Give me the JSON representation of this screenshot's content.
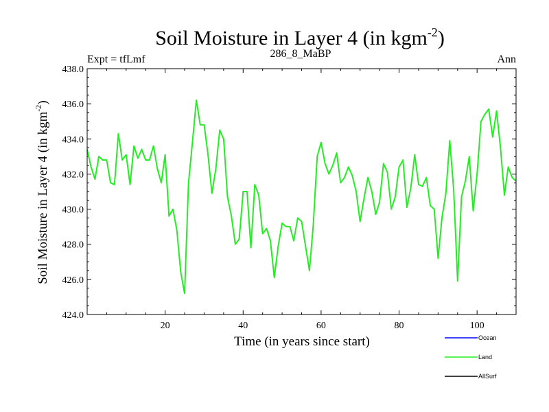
{
  "chart_data": {
    "type": "line",
    "title": "Soil Moisture in Layer 4 (in kgm",
    "title_sup": "-2",
    "title_close": ")",
    "subtitle_left": "Expt = tfLmf",
    "subtitle_center": "286_8_MaBP",
    "subtitle_right": "Ann",
    "xlabel": "Time (in years since start)",
    "ylabel": "Soil Moisture in Layer 4 (in kgm",
    "ylabel_sup": "-2",
    "ylabel_close": ")",
    "xlim": [
      0,
      110
    ],
    "ylim": [
      424,
      438
    ],
    "xticks": [
      20,
      40,
      60,
      80,
      100
    ],
    "xtick_labels": [
      "20",
      "40",
      "60",
      "80",
      "100"
    ],
    "yticks": [
      424,
      426,
      428,
      430,
      432,
      434,
      436,
      438
    ],
    "ytick_labels": [
      "424.0",
      "426.0",
      "428.0",
      "430.0",
      "432.0",
      "434.0",
      "436.0",
      "438.0"
    ],
    "legend": [
      {
        "name": "Ocean",
        "color": "#0000ff"
      },
      {
        "name": "Land",
        "color": "#22ee22"
      },
      {
        "name": "AllSurf",
        "color": "#000000"
      }
    ],
    "series": [
      {
        "name": "Land",
        "color": "#22ee22",
        "x": [
          0,
          1,
          2,
          3,
          4,
          5,
          6,
          7,
          8,
          9,
          10,
          11,
          12,
          13,
          14,
          15,
          16,
          17,
          18,
          19,
          20,
          21,
          22,
          23,
          24,
          25,
          26,
          27,
          28,
          29,
          30,
          31,
          32,
          33,
          34,
          35,
          36,
          37,
          38,
          39,
          40,
          41,
          42,
          43,
          44,
          45,
          46,
          47,
          48,
          49,
          50,
          51,
          52,
          53,
          54,
          55,
          56,
          57,
          58,
          59,
          60,
          61,
          62,
          63,
          64,
          65,
          66,
          67,
          68,
          69,
          70,
          71,
          72,
          73,
          74,
          75,
          76,
          77,
          78,
          79,
          80,
          81,
          82,
          83,
          84,
          85,
          86,
          87,
          88,
          89,
          90,
          91,
          92,
          93,
          94,
          95,
          96,
          97,
          98,
          99,
          100,
          101,
          102,
          103,
          104,
          105,
          106,
          107,
          108,
          109,
          110
        ],
        "values": [
          433.4,
          432.4,
          431.7,
          433.0,
          432.8,
          432.8,
          431.5,
          431.4,
          434.3,
          432.8,
          433.1,
          431.4,
          433.6,
          432.9,
          433.4,
          432.8,
          432.8,
          433.6,
          432.3,
          431.5,
          433.1,
          429.6,
          430.0,
          428.8,
          426.4,
          425.2,
          431.5,
          433.8,
          436.2,
          434.8,
          434.8,
          433.1,
          430.9,
          432.3,
          434.5,
          434.0,
          430.7,
          429.6,
          428.0,
          428.3,
          431.0,
          431.0,
          427.8,
          431.4,
          430.8,
          428.6,
          428.9,
          428.2,
          426.1,
          427.9,
          429.2,
          429.0,
          429.0,
          428.2,
          429.5,
          429.3,
          427.9,
          426.5,
          429.1,
          433.0,
          433.8,
          432.6,
          432.0,
          432.5,
          433.2,
          431.5,
          431.8,
          432.4,
          431.9,
          431.0,
          429.3,
          430.6,
          431.8,
          431.0,
          429.7,
          430.4,
          432.6,
          432.1,
          430.0,
          430.7,
          432.4,
          432.8,
          430.1,
          431.2,
          433.1,
          431.4,
          431.3,
          431.8,
          430.2,
          430.0,
          427.2,
          429.5,
          430.9,
          433.9,
          431.1,
          425.9,
          430.7,
          431.6,
          433.0,
          429.9,
          432.0,
          435.0,
          435.4,
          435.7,
          434.1,
          435.6,
          433.5,
          430.8,
          432.4,
          431.8,
          431.6
        ]
      }
    ]
  }
}
